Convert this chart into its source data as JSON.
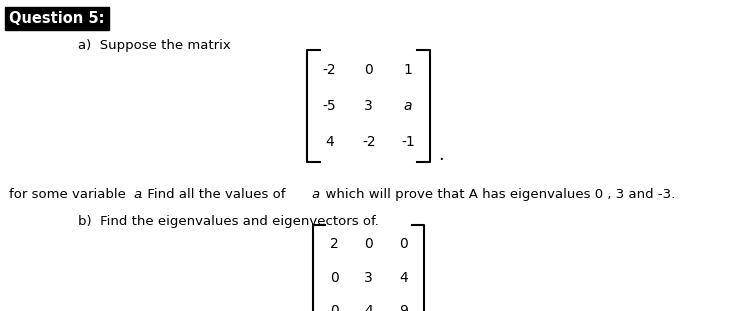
{
  "title": "Question 5:",
  "bg_color": "#ffffff",
  "text_color": "#000000",
  "matrix_a": [
    [
      "-2",
      "0",
      "1"
    ],
    [
      "-5",
      "3",
      "a"
    ],
    [
      "4",
      "-2",
      "-1"
    ]
  ],
  "matrix_b": [
    [
      "2",
      "0",
      "0"
    ],
    [
      "0",
      "3",
      "4"
    ],
    [
      "0",
      "4",
      "9"
    ]
  ],
  "font_size_title": 10.5,
  "font_size_body": 9.5,
  "font_size_matrix": 10
}
